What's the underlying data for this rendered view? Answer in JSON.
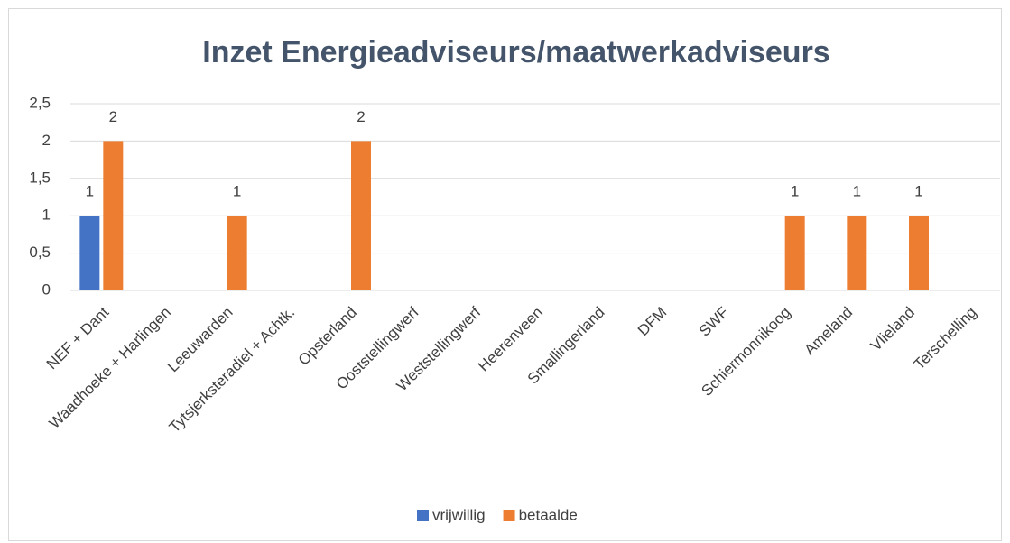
{
  "chart_data": {
    "type": "bar",
    "title": "Inzet Energieadviseurs/maatwerkadviseurs",
    "categories": [
      "NEF + Dant",
      "Waadhoeke + Harlingen",
      "Leeuwarden",
      "Tytsjerksteradiel + Achtk.",
      "Opsterland",
      "Ooststellingwerf",
      "Weststellingwerf",
      "Heerenveen",
      "Smallingerland",
      "DFM",
      "SWF",
      "Schiermonnikoog",
      "Ameland",
      "Vlieland",
      "Terschelling"
    ],
    "series": [
      {
        "name": "vrijwillig",
        "color": "#4472c4",
        "values": [
          1,
          null,
          null,
          null,
          null,
          null,
          null,
          null,
          null,
          null,
          null,
          null,
          null,
          null,
          null
        ]
      },
      {
        "name": "betaalde",
        "color": "#ed7d31",
        "values": [
          2,
          null,
          1,
          null,
          2,
          null,
          null,
          null,
          null,
          null,
          null,
          1,
          1,
          1,
          null
        ]
      }
    ],
    "ylim": [
      0,
      2.5
    ],
    "yticks": [
      0,
      {
        "value": 0.5,
        "label": "0,5"
      },
      1,
      {
        "value": 1.5,
        "label": "1,5"
      },
      2,
      {
        "value": 2.5,
        "label": "2,5"
      }
    ],
    "grid": true,
    "legend": "bottom"
  }
}
